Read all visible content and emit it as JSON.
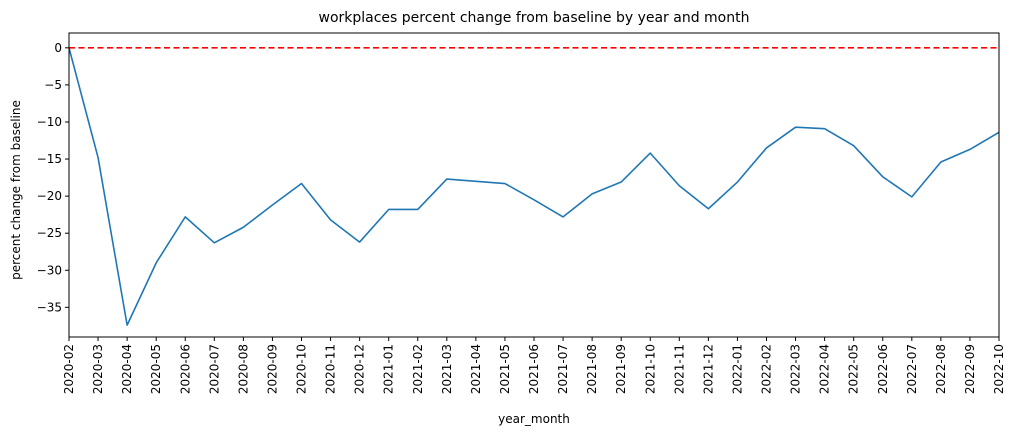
{
  "chart_data": {
    "type": "line",
    "title": "workplaces percent change from baseline by year and month",
    "xlabel": "year_month",
    "ylabel": "percent change from baseline",
    "categories": [
      "2020-02",
      "2020-03",
      "2020-04",
      "2020-05",
      "2020-06",
      "2020-07",
      "2020-08",
      "2020-09",
      "2020-10",
      "2020-11",
      "2020-12",
      "2021-01",
      "2021-02",
      "2021-03",
      "2021-04",
      "2021-05",
      "2021-06",
      "2021-07",
      "2021-08",
      "2021-09",
      "2021-10",
      "2021-11",
      "2021-12",
      "2022-01",
      "2022-02",
      "2022-03",
      "2022-04",
      "2022-05",
      "2022-06",
      "2022-07",
      "2022-08",
      "2022-09",
      "2022-10"
    ],
    "series": [
      {
        "color": "#1f77b4",
        "values": [
          0,
          -14.8,
          -37.4,
          -29.0,
          -22.8,
          -26.3,
          -24.2,
          -21.2,
          -18.3,
          -23.2,
          -26.2,
          -21.8,
          -21.8,
          -17.7,
          -18.0,
          -18.3,
          -20.5,
          -22.8,
          -19.7,
          -18.1,
          -14.2,
          -18.6,
          -21.7,
          -18.1,
          -13.5,
          -10.7,
          -10.9,
          -13.2,
          -17.4,
          -20.1,
          -15.4,
          -13.7,
          -11.4
        ]
      }
    ],
    "reference_line": {
      "y": 0,
      "color": "#ff0000",
      "style": "dashed"
    },
    "yticks": [
      0,
      -5,
      -10,
      -15,
      -20,
      -25,
      -30,
      -35
    ],
    "ylim": [
      -39,
      2
    ],
    "grid": false,
    "legend": "none"
  }
}
